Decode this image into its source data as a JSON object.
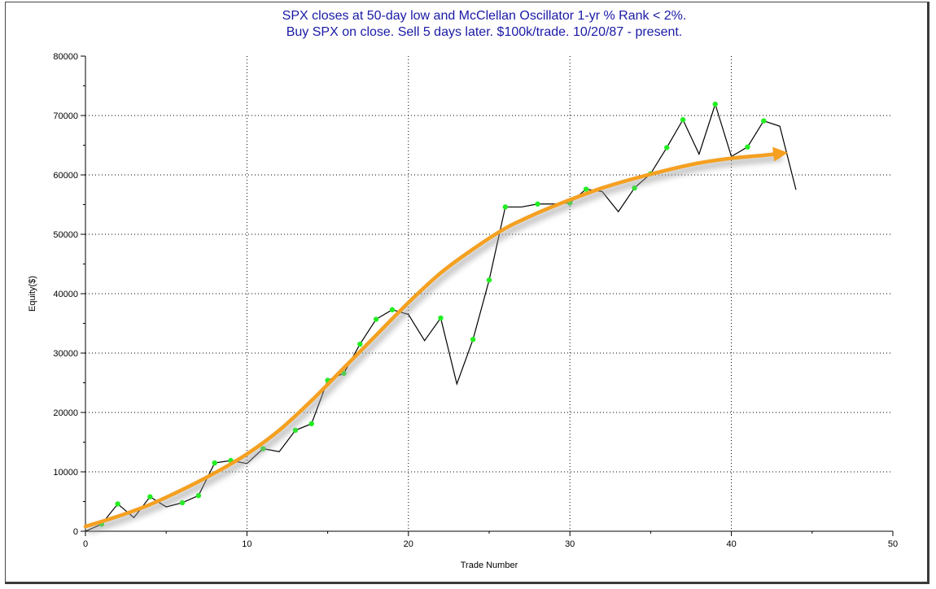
{
  "chart_data": {
    "type": "line",
    "title": "SPX closes at 50-day low and McClellan Oscillator 1-yr % Rank < 2%.",
    "subtitle": "Buy SPX on close. Sell 5 days later. $100k/trade. 10/20/87 - present.",
    "xlabel": "Trade Number",
    "ylabel": "Equity($)",
    "xlim": [
      0,
      50
    ],
    "ylim": [
      0,
      80000
    ],
    "xticks": [
      0,
      10,
      20,
      30,
      40,
      50
    ],
    "yticks": [
      0,
      10000,
      20000,
      30000,
      40000,
      50000,
      60000,
      70000,
      80000
    ],
    "grid": true,
    "series": [
      {
        "color": "#000000",
        "x": [
          0,
          1,
          2,
          3,
          4,
          5,
          6,
          7,
          8,
          9,
          10,
          11,
          12,
          13,
          14,
          15,
          16,
          17,
          18,
          19,
          20,
          21,
          22,
          23,
          24,
          25,
          26,
          27,
          28,
          29,
          30,
          31,
          32,
          33,
          34,
          35,
          36,
          37,
          38,
          39,
          40,
          41,
          42,
          43,
          44
        ],
        "values": [
          0,
          1200,
          4600,
          2300,
          5800,
          4100,
          4800,
          6000,
          11500,
          11900,
          11400,
          13900,
          13400,
          17000,
          18100,
          25400,
          26600,
          31500,
          35700,
          37300,
          36500,
          32100,
          35900,
          24800,
          32300,
          42300,
          54600,
          54600,
          55100,
          55100,
          55300,
          57600,
          57200,
          53800,
          57800,
          60200,
          64600,
          69300,
          63500,
          71900,
          63100,
          64700,
          69100,
          68200,
          57500
        ],
        "markers_on_winning_trades": true,
        "marker_color": "#22ee22"
      }
    ],
    "annotations": [
      {
        "kind": "trend-arrow",
        "color": "#f5a020",
        "x": [
          0,
          2,
          4,
          6,
          8,
          10,
          12,
          14,
          16,
          18,
          20,
          22,
          24,
          26,
          28,
          30,
          32,
          34,
          36,
          38,
          40,
          42,
          43
        ],
        "values": [
          800,
          2500,
          4500,
          7000,
          9800,
          13000,
          17000,
          22000,
          27500,
          33000,
          38500,
          43500,
          47500,
          51000,
          53600,
          55800,
          57800,
          59400,
          60800,
          62000,
          62800,
          63300,
          63600
        ]
      }
    ]
  }
}
